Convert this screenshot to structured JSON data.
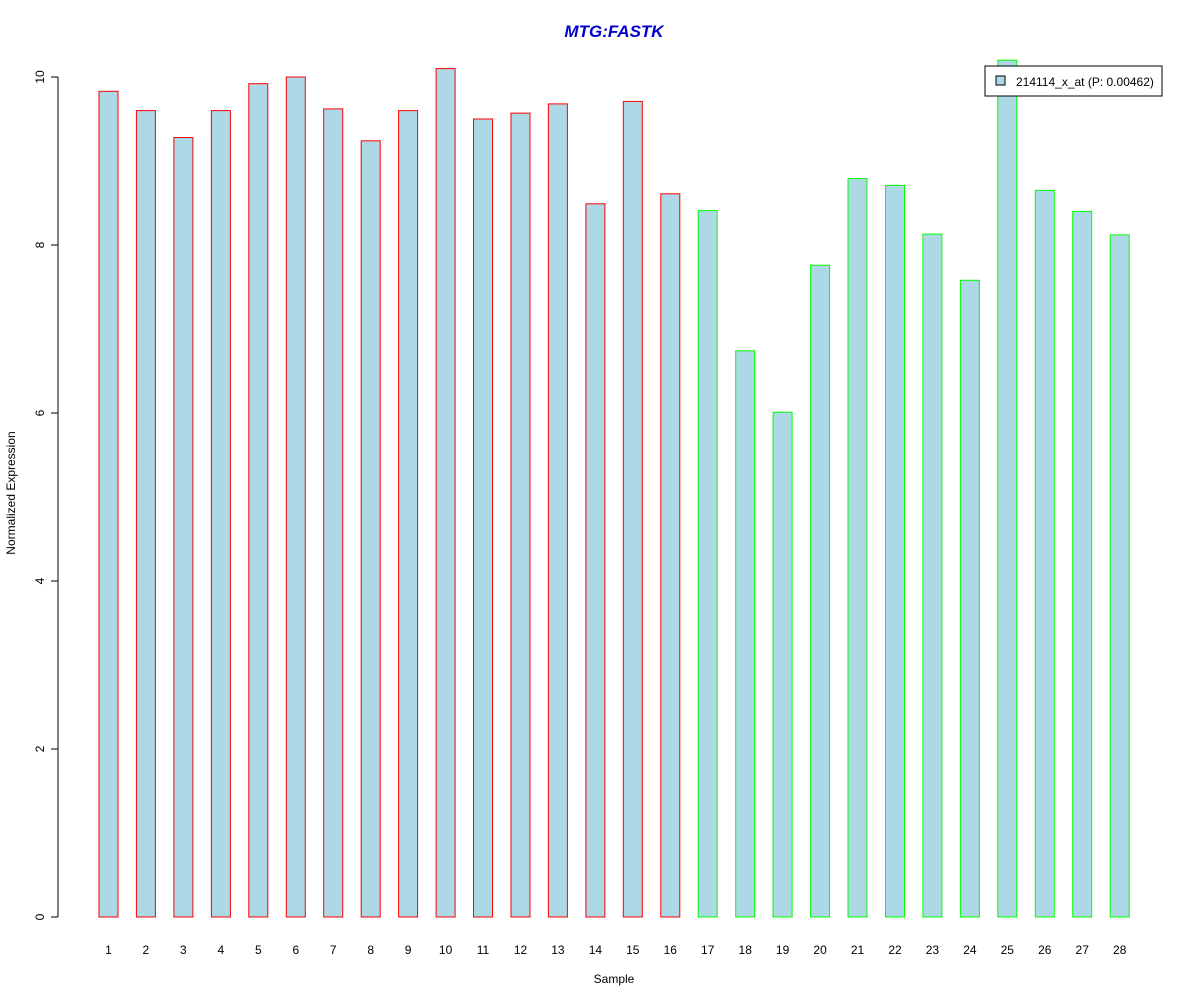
{
  "chart_data": {
    "type": "bar",
    "title": "MTG:FASTK",
    "xlabel": "Sample",
    "ylabel": "Normalized Expression",
    "ylim": [
      0,
      10.4
    ],
    "yticks": [
      0,
      2,
      4,
      6,
      8,
      10
    ],
    "categories": [
      "1",
      "2",
      "3",
      "4",
      "5",
      "6",
      "7",
      "8",
      "9",
      "10",
      "11",
      "12",
      "13",
      "14",
      "15",
      "16",
      "17",
      "18",
      "19",
      "20",
      "21",
      "22",
      "23",
      "24",
      "25",
      "26",
      "27",
      "28"
    ],
    "series": [
      {
        "name": "214114_x_at (P: 0.00462)",
        "values": [
          9.83,
          9.6,
          9.28,
          9.6,
          9.92,
          10.0,
          9.62,
          9.24,
          9.6,
          10.1,
          9.5,
          9.57,
          9.68,
          8.49,
          9.71,
          8.61,
          8.41,
          6.74,
          6.01,
          7.76,
          8.79,
          8.71,
          8.13,
          7.58,
          10.2,
          8.65,
          8.4,
          8.12
        ],
        "fill": "#add8e6"
      }
    ],
    "groups": [
      {
        "samples": "1-16",
        "border_color": "#ff0000"
      },
      {
        "samples": "17-28",
        "border_color": "#00ff00"
      }
    ],
    "title_color": "#0000cd",
    "legend_position": "top-right",
    "grid": false
  }
}
